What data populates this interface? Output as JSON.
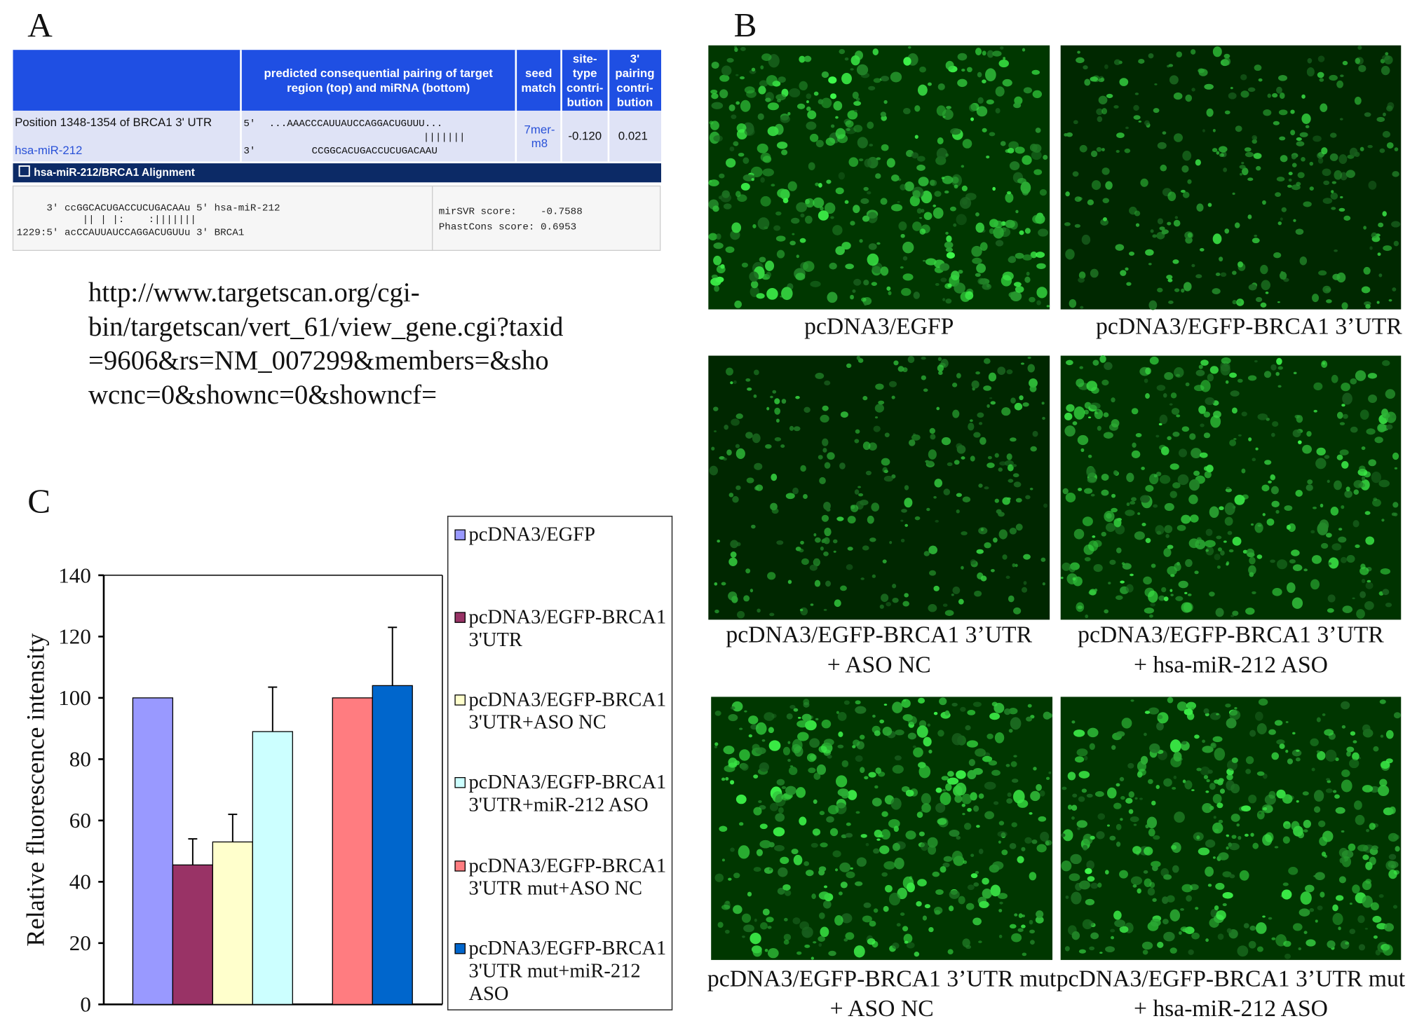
{
  "panel_a": {
    "label": "A",
    "header": [
      [
        "predicted consequential pairing of target",
        "region (top) and miRNA (bottom)"
      ],
      [
        "seed",
        "match"
      ],
      [
        "site-",
        "type",
        "contri-",
        "bution"
      ],
      [
        "3'",
        "pairing",
        "contri-",
        "bution"
      ]
    ],
    "row": {
      "position": "Position 1348-1354 of BRCA1 3' UTR",
      "mirna": "hsa-miR-212",
      "top_prime": "5'",
      "top_seq": "...AAACCCAUUAUCCAGGACUGUUU...",
      "pairs": "|||||||",
      "bottom_prime": "3'",
      "bottom_seq": "CCGGCACUGACCUCUGACAAU",
      "seed": [
        "7mer-",
        "m8"
      ],
      "site": "-0.120",
      "pairing": "0.021"
    },
    "alignment": {
      "title": "hsa-miR-212/BRCA1 Alignment",
      "lines": [
        "     3' ccGGCACUGACCUCUGACAAu 5' hsa-miR-212",
        "           || | |:    :|||||||",
        "1229:5' acCCAUUAUCCAGGACUGUUu 3' BRCA1"
      ],
      "scores": [
        "mirSVR score:    -0.7588",
        "PhastCons score: 0.6953"
      ]
    },
    "url": [
      "http://www.targetscan.org/cgi-",
      "bin/targetscan/vert_61/view_gene.cgi?taxid",
      "=9606&rs=NM_007299&members=&sho",
      "wcnc=0&shownc=0&showncf="
    ]
  },
  "panel_b": {
    "label": "B",
    "captions": [
      [
        "pcDNA3/EGFP"
      ],
      [
        "pcDNA3/EGFP-BRCA1 3’UTR"
      ],
      [
        "pcDNA3/EGFP-BRCA1 3’UTR",
        "+  ASO NC"
      ],
      [
        "pcDNA3/EGFP-BRCA1 3’UTR",
        "+ hsa-miR-212 ASO"
      ],
      [
        "pcDNA3/EGFP-BRCA1 3’UTR mut",
        "+  ASO NC"
      ],
      [
        "pcDNA3/EGFP-BRCA1 3’UTR mut",
        "+ hsa-miR-212 ASO"
      ]
    ]
  },
  "chart_data": {
    "type": "bar",
    "label": "C",
    "ylabel": "Relative fluorescence intensity",
    "ylim": [
      0,
      140
    ],
    "yticks": [
      0,
      20,
      40,
      60,
      80,
      100,
      120,
      140
    ],
    "series": [
      {
        "name": "pcDNA3/EGFP",
        "color": "#9999ff",
        "values": [
          100
        ],
        "errors": [
          null
        ]
      },
      {
        "name": "pcDNA3/EGFP-BRCA1 3'UTR",
        "color": "#993366",
        "values": [
          45.5
        ],
        "errors": [
          8.5
        ]
      },
      {
        "name": "pcDNA3/EGFP-BRCA1 3'UTR+ASO NC",
        "color": "#ffffcc",
        "values": [
          53
        ],
        "errors": [
          9
        ]
      },
      {
        "name": "pcDNA3/EGFP-BRCA1 3'UTR+miR-212 ASO",
        "color": "#ccffff",
        "values": [
          89
        ],
        "errors": [
          14.5
        ]
      },
      {
        "name": "pcDNA3/EGFP-BRCA1 3'UTR mut+ASO NC",
        "color": "#ff7c80",
        "values": [
          100
        ],
        "errors": [
          null
        ]
      },
      {
        "name": "pcDNA3/EGFP-BRCA1 3'UTR mut+miR-212 ASO",
        "color": "#0066cc",
        "values": [
          104
        ],
        "errors": [
          19
        ]
      }
    ]
  }
}
